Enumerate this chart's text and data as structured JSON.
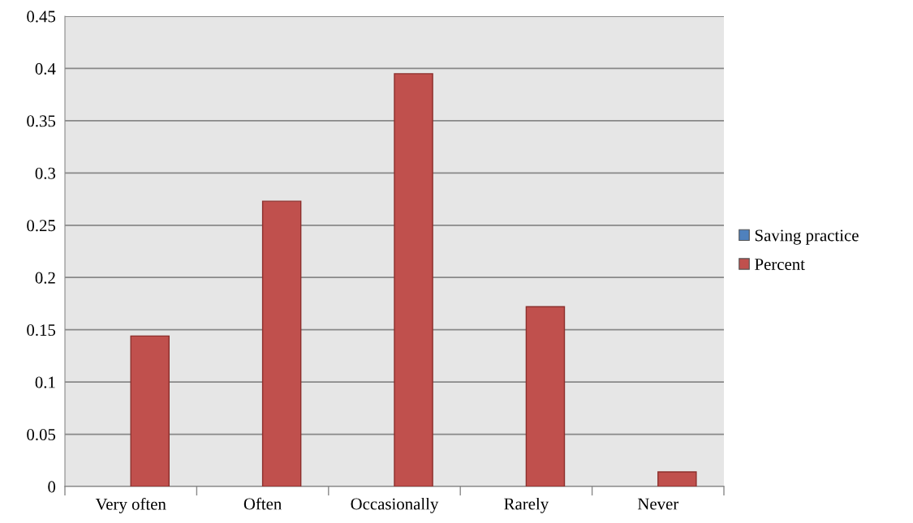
{
  "chart_data": {
    "type": "bar",
    "categories": [
      "Very often",
      "Often",
      "Occasionally",
      "Rarely",
      "Never"
    ],
    "series": [
      {
        "name": "Saving practice",
        "color": "#4f81bd",
        "values": [
          null,
          null,
          null,
          null,
          null
        ]
      },
      {
        "name": "Percent",
        "color": "#c0504d",
        "values": [
          0.144,
          0.273,
          0.395,
          0.172,
          0.014
        ]
      }
    ],
    "ylim": [
      0,
      0.45
    ],
    "yticks": [
      0,
      0.05,
      0.1,
      0.15,
      0.2,
      0.25,
      0.3,
      0.35,
      0.4,
      0.45
    ],
    "grid": "y",
    "legend": "right"
  }
}
